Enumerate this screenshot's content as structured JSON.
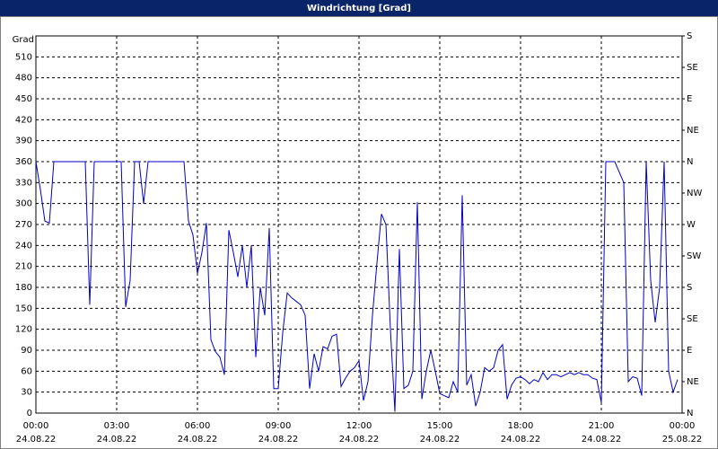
{
  "chart_data": {
    "type": "line",
    "title": "Windrichtung [Grad]",
    "ylabel": "Grad",
    "x": [
      "24.08.22 00:00",
      "24.08.22 00:10",
      "24.08.22 00:20",
      "24.08.22 00:30",
      "24.08.22 00:40",
      "24.08.22 00:50",
      "24.08.22 01:00",
      "24.08.22 01:10",
      "24.08.22 01:20",
      "24.08.22 01:30",
      "24.08.22 01:40",
      "24.08.22 01:50",
      "24.08.22 02:00",
      "24.08.22 02:10",
      "24.08.22 02:20",
      "24.08.22 02:30",
      "24.08.22 02:40",
      "24.08.22 02:50",
      "24.08.22 03:00",
      "24.08.22 03:10",
      "24.08.22 03:20",
      "24.08.22 03:30",
      "24.08.22 03:40",
      "24.08.22 03:50",
      "24.08.22 04:00",
      "24.08.22 04:10",
      "24.08.22 04:20",
      "24.08.22 04:30",
      "24.08.22 04:40",
      "24.08.22 04:50",
      "24.08.22 05:00",
      "24.08.22 05:10",
      "24.08.22 05:20",
      "24.08.22 05:30",
      "24.08.22 05:40",
      "24.08.22 05:50",
      "24.08.22 06:00",
      "24.08.22 06:10",
      "24.08.22 06:20",
      "24.08.22 06:30",
      "24.08.22 06:40",
      "24.08.22 06:50",
      "24.08.22 07:00",
      "24.08.22 07:10",
      "24.08.22 07:20",
      "24.08.22 07:30",
      "24.08.22 07:40",
      "24.08.22 07:50",
      "24.08.22 08:00",
      "24.08.22 08:10",
      "24.08.22 08:20",
      "24.08.22 08:30",
      "24.08.22 08:40",
      "24.08.22 08:50",
      "24.08.22 09:00",
      "24.08.22 09:10",
      "24.08.22 09:20",
      "24.08.22 09:30",
      "24.08.22 09:40",
      "24.08.22 09:50",
      "24.08.22 10:00",
      "24.08.22 10:10",
      "24.08.22 10:20",
      "24.08.22 10:30",
      "24.08.22 10:40",
      "24.08.22 10:50",
      "24.08.22 11:00",
      "24.08.22 11:10",
      "24.08.22 11:20",
      "24.08.22 11:30",
      "24.08.22 11:40",
      "24.08.22 11:50",
      "24.08.22 12:00",
      "24.08.22 12:10",
      "24.08.22 12:20",
      "24.08.22 12:30",
      "24.08.22 12:40",
      "24.08.22 12:50",
      "24.08.22 13:00",
      "24.08.22 13:10",
      "24.08.22 13:20",
      "24.08.22 13:30",
      "24.08.22 13:40",
      "24.08.22 13:50",
      "24.08.22 14:00",
      "24.08.22 14:10",
      "24.08.22 14:20",
      "24.08.22 14:30",
      "24.08.22 14:40",
      "24.08.22 14:50",
      "24.08.22 15:00",
      "24.08.22 15:10",
      "24.08.22 15:20",
      "24.08.22 15:30",
      "24.08.22 15:40",
      "24.08.22 15:50",
      "24.08.22 16:00",
      "24.08.22 16:10",
      "24.08.22 16:20",
      "24.08.22 16:30",
      "24.08.22 16:40",
      "24.08.22 16:50",
      "24.08.22 17:00",
      "24.08.22 17:10",
      "24.08.22 17:20",
      "24.08.22 17:30",
      "24.08.22 17:40",
      "24.08.22 17:50",
      "24.08.22 18:00",
      "24.08.22 18:10",
      "24.08.22 18:20",
      "24.08.22 18:30",
      "24.08.22 18:40",
      "24.08.22 18:50",
      "24.08.22 19:00",
      "24.08.22 19:10",
      "24.08.22 19:20",
      "24.08.22 19:30",
      "24.08.22 19:40",
      "24.08.22 19:50",
      "24.08.22 20:00",
      "24.08.22 20:10",
      "24.08.22 20:20",
      "24.08.22 20:30",
      "24.08.22 20:40",
      "24.08.22 20:50",
      "24.08.22 21:00",
      "24.08.22 21:10",
      "24.08.22 21:20",
      "24.08.22 21:30",
      "24.08.22 21:40",
      "24.08.22 21:50",
      "24.08.22 22:00",
      "24.08.22 22:10",
      "24.08.22 22:20",
      "24.08.22 22:30",
      "24.08.22 22:40",
      "24.08.22 22:50",
      "24.08.22 23:00",
      "24.08.22 23:10",
      "24.08.22 23:20",
      "24.08.22 23:30",
      "24.08.22 23:40",
      "24.08.22 23:50"
    ],
    "series": [
      {
        "color": "#0000c8",
        "values": [
          360,
          320,
          275,
          272,
          360,
          360,
          360,
          360,
          360,
          360,
          360,
          360,
          155,
          360,
          360,
          360,
          360,
          360,
          360,
          360,
          152,
          190,
          360,
          360,
          300,
          360,
          360,
          360,
          360,
          360,
          360,
          360,
          360,
          360,
          275,
          255,
          200,
          230,
          272,
          105,
          88,
          80,
          55,
          262,
          230,
          195,
          240,
          180,
          240,
          80,
          180,
          140,
          265,
          35,
          35,
          115,
          172,
          165,
          160,
          155,
          140,
          35,
          85,
          60,
          95,
          92,
          110,
          113,
          38,
          50,
          60,
          65,
          75,
          18,
          45,
          140,
          215,
          285,
          270,
          120,
          2,
          235,
          35,
          40,
          60,
          302,
          20,
          60,
          90,
          60,
          28,
          25,
          22,
          45,
          30,
          312,
          40,
          55,
          10,
          30,
          65,
          60,
          65,
          90,
          98,
          20,
          40,
          50,
          52,
          48,
          42,
          48,
          45,
          58,
          48,
          55,
          55,
          52,
          55,
          58,
          55,
          58,
          55,
          55,
          50,
          48,
          15,
          360,
          360,
          360,
          345,
          330,
          45,
          52,
          50,
          25,
          360,
          190,
          130,
          180,
          360,
          60,
          30,
          48
        ]
      }
    ],
    "xlim": [
      "24.08.22 00:00",
      "25.08.22 00:00"
    ],
    "xticks": [
      {
        "value": "24.08.22 00:00",
        "label": [
          "00:00",
          "24.08.22"
        ]
      },
      {
        "value": "24.08.22 03:00",
        "label": [
          "03:00",
          "24.08.22"
        ]
      },
      {
        "value": "24.08.22 06:00",
        "label": [
          "06:00",
          "24.08.22"
        ]
      },
      {
        "value": "24.08.22 09:00",
        "label": [
          "09:00",
          "24.08.22"
        ]
      },
      {
        "value": "24.08.22 12:00",
        "label": [
          "12:00",
          "24.08.22"
        ]
      },
      {
        "value": "24.08.22 15:00",
        "label": [
          "15:00",
          "24.08.22"
        ]
      },
      {
        "value": "24.08.22 18:00",
        "label": [
          "18:00",
          "24.08.22"
        ]
      },
      {
        "value": "24.08.22 21:00",
        "label": [
          "21:00",
          "24.08.22"
        ]
      },
      {
        "value": "25.08.22 00:00",
        "label": [
          "00:00",
          "25.08.22"
        ]
      }
    ],
    "ylim": [
      0,
      540
    ],
    "yticks": [
      0,
      30,
      60,
      90,
      120,
      150,
      180,
      210,
      240,
      270,
      300,
      330,
      360,
      390,
      420,
      450,
      480,
      510
    ],
    "y2lim": [
      0,
      540
    ],
    "y2ticks": [
      {
        "value": 0,
        "label": "N"
      },
      {
        "value": 45,
        "label": "NE"
      },
      {
        "value": 90,
        "label": "E"
      },
      {
        "value": 135,
        "label": "SE"
      },
      {
        "value": 180,
        "label": "S"
      },
      {
        "value": 225,
        "label": "SW"
      },
      {
        "value": 270,
        "label": "W"
      },
      {
        "value": 315,
        "label": "NW"
      },
      {
        "value": 360,
        "label": "N"
      },
      {
        "value": 405,
        "label": "NE"
      },
      {
        "value": 450,
        "label": "E"
      },
      {
        "value": 495,
        "label": "SE"
      },
      {
        "value": 540,
        "label": "S"
      }
    ],
    "grid": true
  }
}
